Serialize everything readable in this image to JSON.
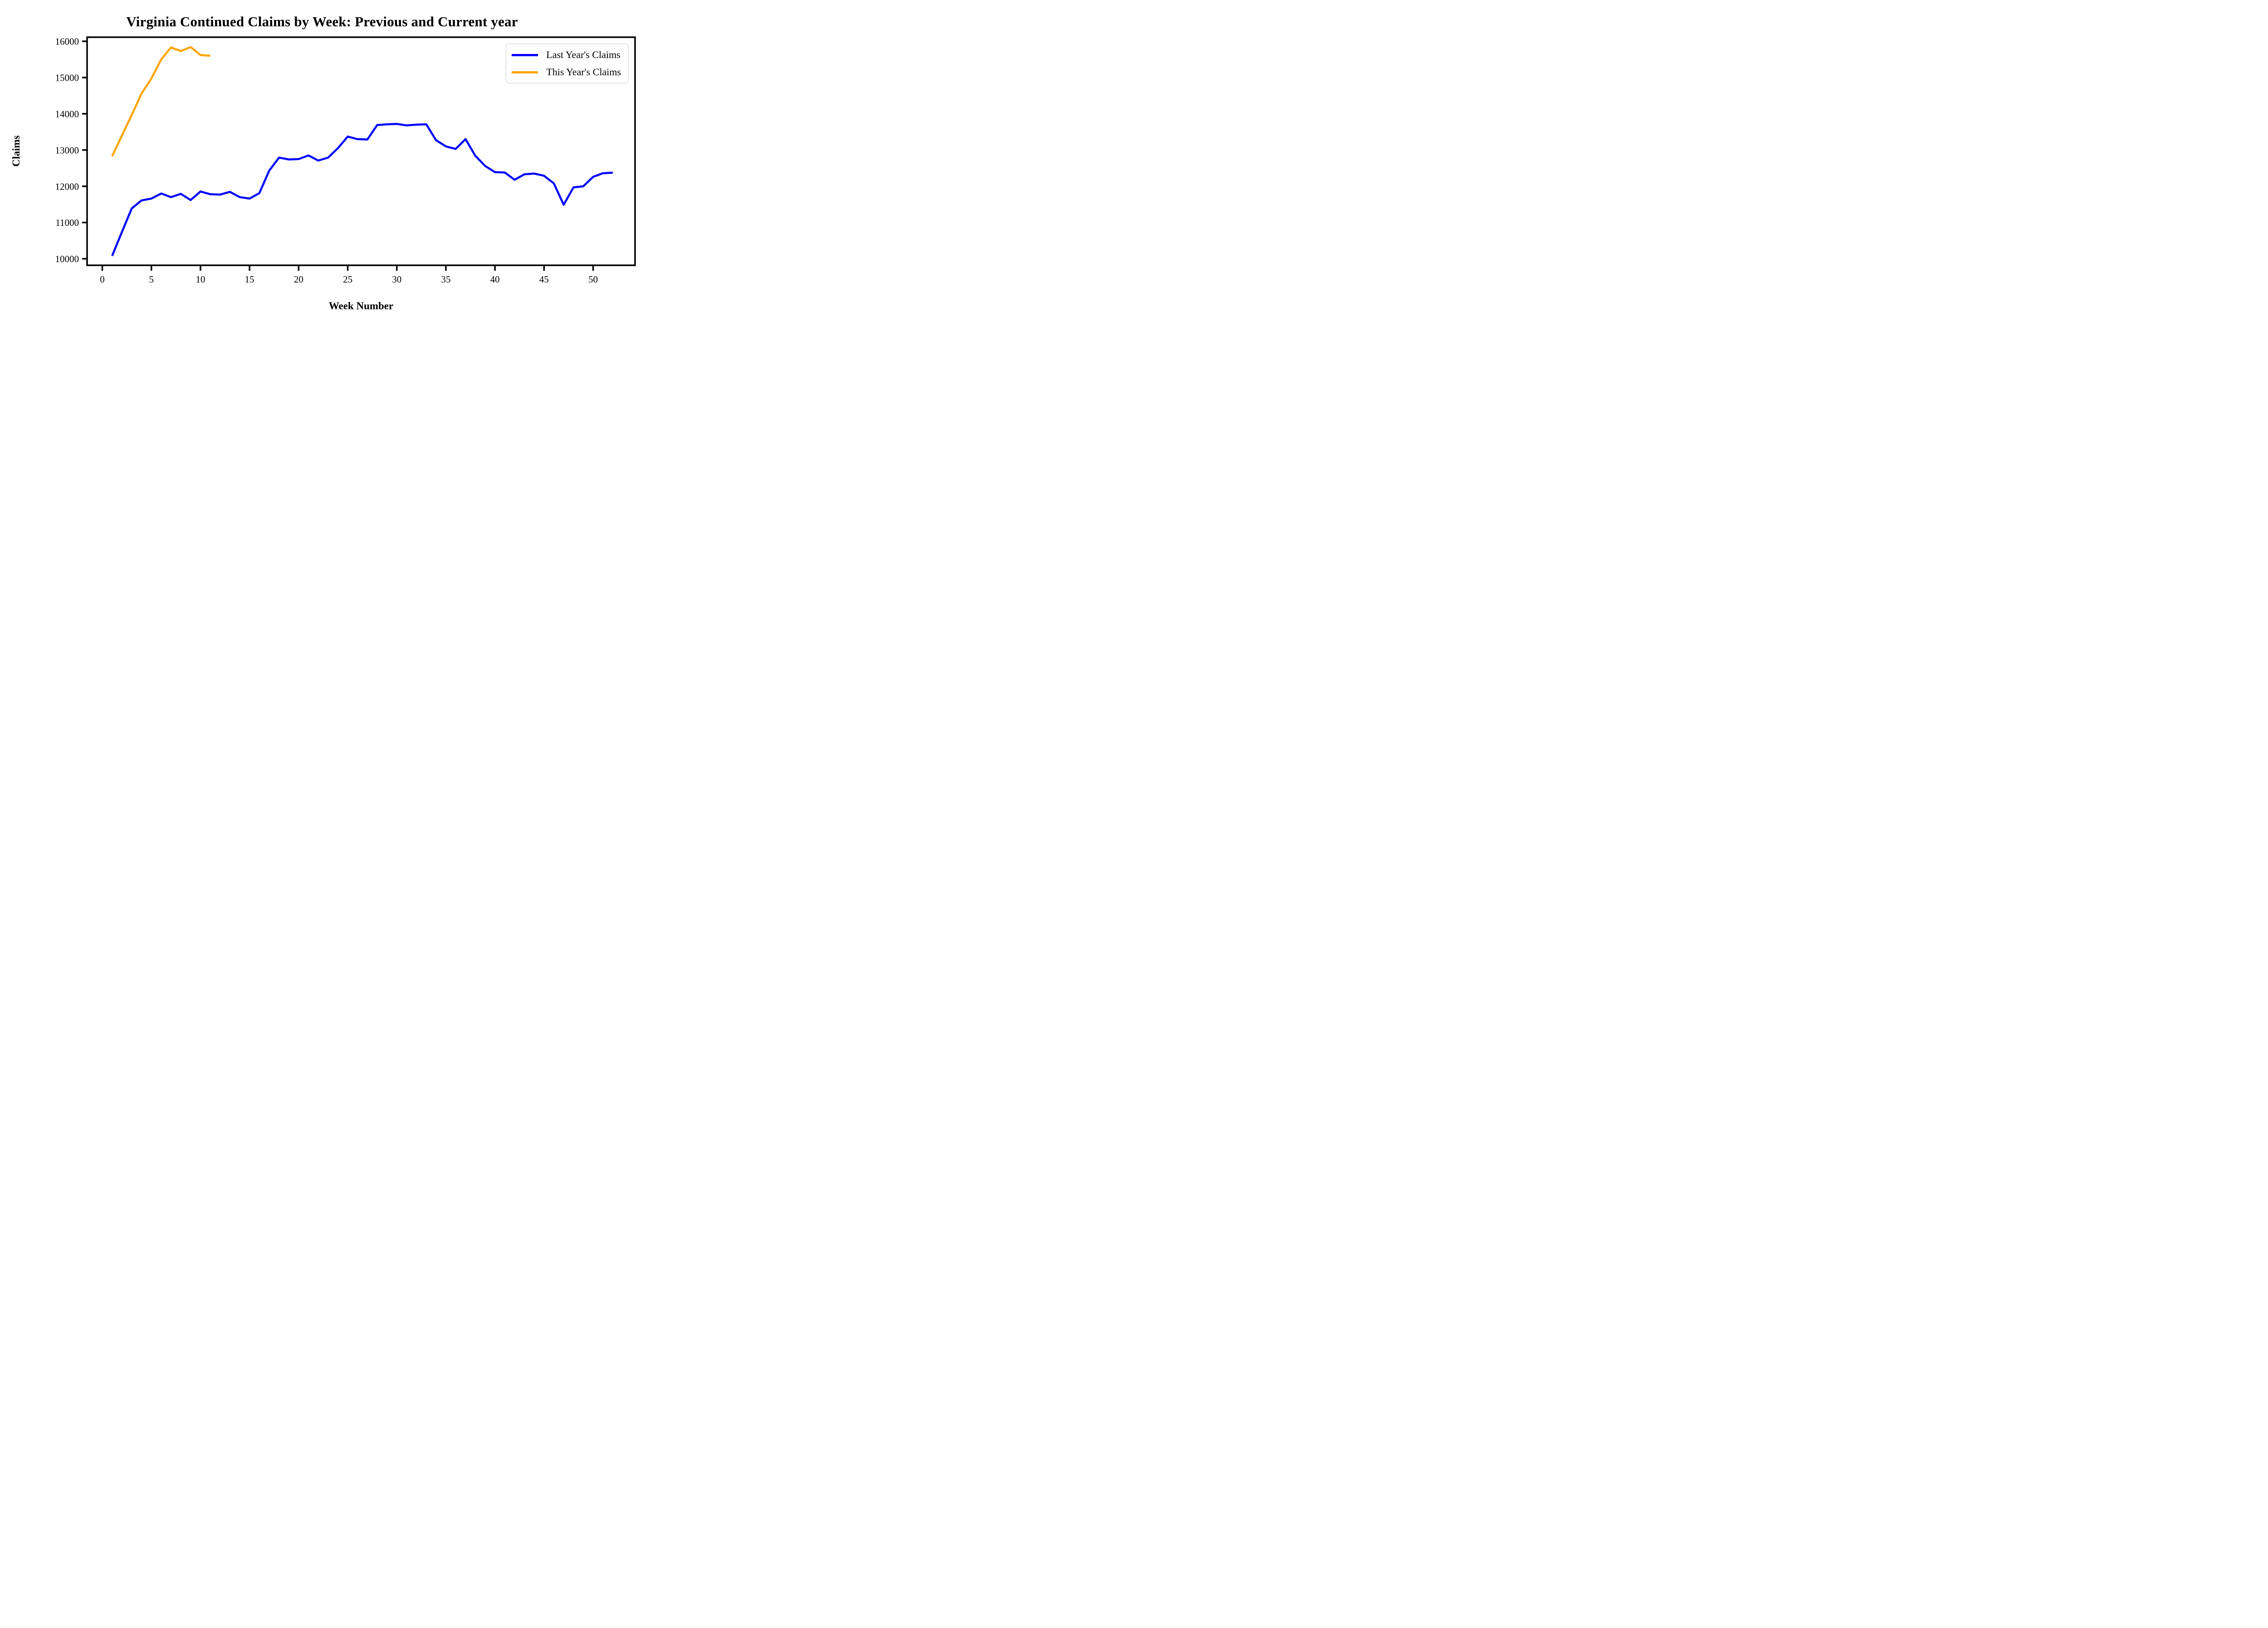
{
  "chart_data": {
    "type": "line",
    "title": "Virginia Continued Claims by Week: Previous and Current year",
    "xlabel": "Week Number",
    "ylabel": "Claims",
    "x_ticks": [
      0,
      5,
      10,
      15,
      20,
      25,
      30,
      35,
      40,
      45,
      50
    ],
    "y_ticks": [
      10000,
      11000,
      12000,
      13000,
      14000,
      15000,
      16000
    ],
    "xlim": [
      -1.55,
      54.27
    ],
    "ylim": [
      9820,
      16113
    ],
    "grid": false,
    "legend_position": "upper right",
    "axis_color": "#000000",
    "background_color": "#ffffff",
    "series": [
      {
        "name": "Last Year's Claims",
        "color": "#0000ff",
        "x": [
          1,
          2,
          3,
          4,
          5,
          6,
          7,
          8,
          9,
          10,
          11,
          12,
          13,
          14,
          15,
          16,
          17,
          18,
          19,
          20,
          21,
          22,
          23,
          24,
          25,
          26,
          27,
          28,
          29,
          30,
          31,
          32,
          33,
          34,
          35,
          36,
          37,
          38,
          39,
          40,
          41,
          42,
          43,
          44,
          45,
          46,
          47,
          48,
          49,
          50,
          51,
          52
        ],
        "values": [
          10080,
          10740,
          11390,
          11610,
          11660,
          11800,
          11700,
          11790,
          11620,
          11855,
          11780,
          11770,
          11845,
          11700,
          11660,
          11810,
          12430,
          12790,
          12740,
          12750,
          12850,
          12710,
          12790,
          13050,
          13370,
          13300,
          13290,
          13690,
          13710,
          13720,
          13680,
          13700,
          13710,
          13270,
          13100,
          13030,
          13300,
          12840,
          12560,
          12390,
          12380,
          12180,
          12330,
          12350,
          12290,
          12080,
          11490,
          11970,
          12000,
          12260,
          12360,
          12375
        ]
      },
      {
        "name": "This Year's Claims",
        "color": "#ffa500",
        "x": [
          1,
          2,
          3,
          4,
          5,
          6,
          7,
          8,
          9,
          10,
          11
        ],
        "values": [
          12830,
          13400,
          13970,
          14560,
          14970,
          15500,
          15830,
          15730,
          15840,
          15620,
          15600
        ]
      }
    ]
  }
}
